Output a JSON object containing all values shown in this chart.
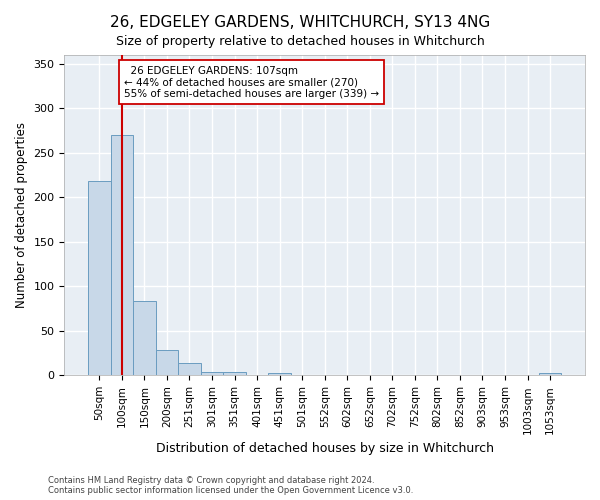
{
  "title": "26, EDGELEY GARDENS, WHITCHURCH, SY13 4NG",
  "subtitle": "Size of property relative to detached houses in Whitchurch",
  "xlabel": "Distribution of detached houses by size in Whitchurch",
  "ylabel": "Number of detached properties",
  "bar_color": "#c8d8e8",
  "bar_edge_color": "#6a9cc0",
  "background_color": "#e8eef4",
  "grid_color": "#ffffff",
  "fig_background": "#ffffff",
  "categories": [
    "50sqm",
    "100sqm",
    "150sqm",
    "200sqm",
    "251sqm",
    "301sqm",
    "351sqm",
    "401sqm",
    "451sqm",
    "501sqm",
    "552sqm",
    "602sqm",
    "652sqm",
    "702sqm",
    "752sqm",
    "802sqm",
    "852sqm",
    "903sqm",
    "953sqm",
    "1003sqm",
    "1053sqm"
  ],
  "values": [
    218,
    270,
    84,
    29,
    14,
    4,
    4,
    0,
    3,
    0,
    0,
    0,
    0,
    0,
    0,
    0,
    0,
    0,
    0,
    0,
    3
  ],
  "ylim": [
    0,
    360
  ],
  "yticks": [
    0,
    50,
    100,
    150,
    200,
    250,
    300,
    350
  ],
  "property_label": "26 EDGELEY GARDENS: 107sqm",
  "smaller_pct": 44,
  "smaller_count": 270,
  "larger_pct": 55,
  "larger_count": 339,
  "vline_color": "#cc0000",
  "annotation_box_facecolor": "#ffffff",
  "annotation_box_edgecolor": "#cc0000",
  "footer_line1": "Contains HM Land Registry data © Crown copyright and database right 2024.",
  "footer_line2": "Contains public sector information licensed under the Open Government Licence v3.0."
}
